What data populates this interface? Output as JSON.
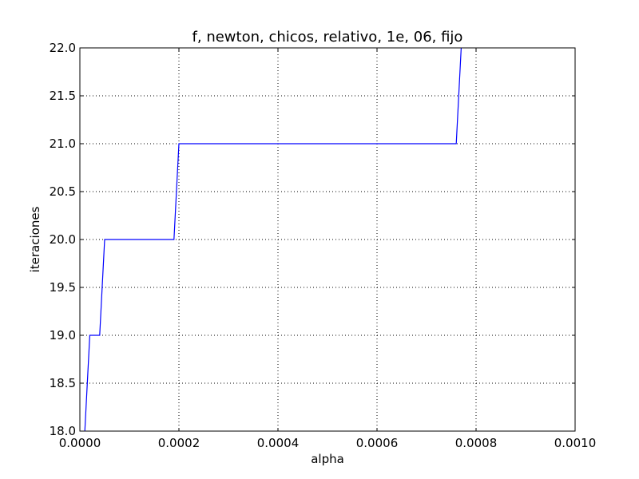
{
  "chart_data": {
    "type": "line",
    "title": "f, newton, chicos, relativo, 1e, 06, fijo",
    "xlabel": "alpha",
    "ylabel": "iteraciones",
    "xlim": [
      0.0,
      0.001
    ],
    "ylim": [
      18.0,
      22.0
    ],
    "xticks": [
      0.0,
      0.0002,
      0.0004,
      0.0006,
      0.0008,
      0.001
    ],
    "xtick_labels": [
      "0.0000",
      "0.0002",
      "0.0004",
      "0.0006",
      "0.0008",
      "0.0010"
    ],
    "yticks": [
      18.0,
      18.5,
      19.0,
      19.5,
      20.0,
      20.5,
      21.0,
      21.5,
      22.0
    ],
    "ytick_labels": [
      "18.0",
      "18.5",
      "19.0",
      "19.5",
      "20.0",
      "20.5",
      "21.0",
      "21.5",
      "22.0"
    ],
    "grid": true,
    "line_color": "#0000ff",
    "series": [
      {
        "x": [
          1e-05,
          2e-05,
          4e-05,
          5e-05,
          0.00019,
          0.0002,
          0.00076,
          0.00077
        ],
        "y": [
          18,
          19,
          19,
          20,
          20,
          21,
          21,
          22
        ]
      }
    ]
  }
}
